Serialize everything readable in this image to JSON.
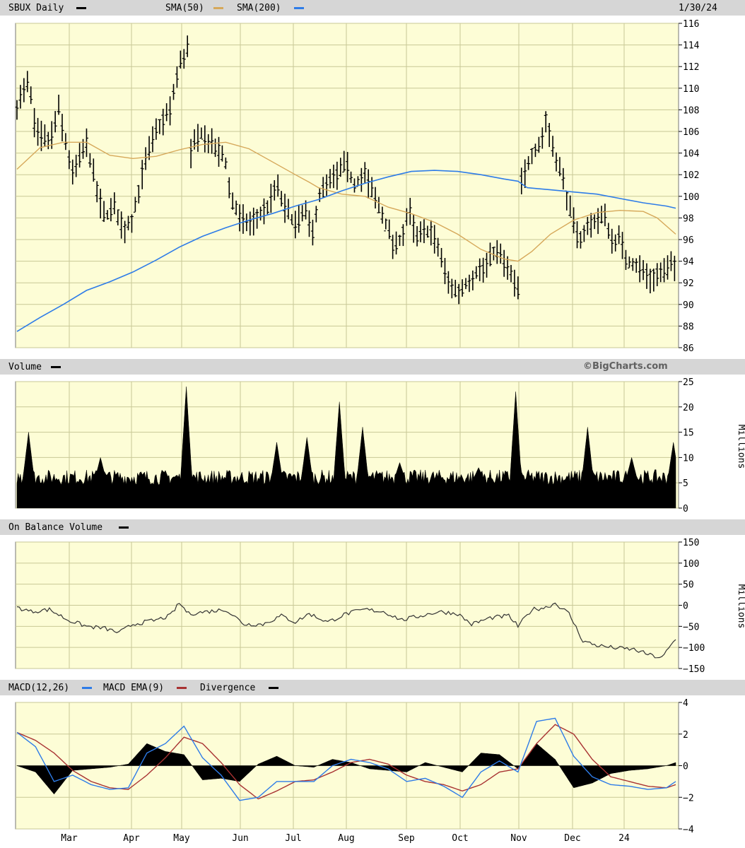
{
  "ticker_label": "SBUX Daily",
  "date_label": "1/30/24",
  "credit": "©BigCharts.com",
  "colors": {
    "panel_bg": "#fdfdd6",
    "grid": "#c8c896",
    "sma50": "#d6a85a",
    "sma200": "#2e7ce8",
    "macd": "#2e7ce8",
    "macd_ema": "#a83232",
    "price": "#000000",
    "obv": "#333333"
  },
  "legend": {
    "sma50": "SMA(50)",
    "sma200": "SMA(200)",
    "volume": "Volume",
    "obv": "On Balance Volume",
    "macd": "MACD(12,26)",
    "macd_ema": "MACD EMA(9)",
    "divergence": "Divergence"
  },
  "chart_data": [
    {
      "type": "ohlc",
      "title": "SBUX Daily",
      "ylim": [
        86,
        116
      ],
      "yticks": [
        86,
        88,
        90,
        92,
        94,
        96,
        98,
        100,
        102,
        104,
        106,
        108,
        110,
        112,
        114,
        116
      ],
      "xticks": [
        "Mar",
        "Apr",
        "May",
        "Jun",
        "Jul",
        "Aug",
        "Sep",
        "Oct",
        "Nov",
        "Dec",
        "24"
      ],
      "price_keypoints": [
        [
          0,
          108.5
        ],
        [
          5,
          110.5
        ],
        [
          8,
          106
        ],
        [
          14,
          105
        ],
        [
          18,
          108
        ],
        [
          24,
          102
        ],
        [
          30,
          105
        ],
        [
          35,
          100
        ],
        [
          38,
          98
        ],
        [
          42,
          99
        ],
        [
          46,
          97
        ],
        [
          50,
          98
        ],
        [
          55,
          103
        ],
        [
          60,
          106
        ],
        [
          66,
          108
        ],
        [
          70,
          112
        ],
        [
          74,
          114
        ],
        [
          75,
          104
        ],
        [
          79,
          106
        ],
        [
          83,
          105
        ],
        [
          88,
          104
        ],
        [
          90,
          103
        ],
        [
          92,
          100
        ],
        [
          96,
          98
        ],
        [
          100,
          97.5
        ],
        [
          104,
          98
        ],
        [
          108,
          99
        ],
        [
          112,
          101
        ],
        [
          115,
          99
        ],
        [
          120,
          97.5
        ],
        [
          125,
          98.5
        ],
        [
          127,
          96
        ],
        [
          130,
          100
        ],
        [
          134,
          101
        ],
        [
          138,
          102
        ],
        [
          142,
          103
        ],
        [
          145,
          101
        ],
        [
          150,
          102
        ],
        [
          154,
          100
        ],
        [
          158,
          98
        ],
        [
          163,
          95
        ],
        [
          167,
          97
        ],
        [
          169,
          99
        ],
        [
          172,
          96
        ],
        [
          178,
          97
        ],
        [
          182,
          95
        ],
        [
          186,
          92
        ],
        [
          190,
          91
        ],
        [
          194,
          92
        ],
        [
          198,
          93
        ],
        [
          202,
          93.5
        ],
        [
          206,
          95
        ],
        [
          210,
          94
        ],
        [
          214,
          92
        ],
        [
          216,
          91.5
        ],
        [
          217,
          101
        ],
        [
          222,
          104
        ],
        [
          226,
          105
        ],
        [
          228,
          107
        ],
        [
          232,
          104
        ],
        [
          236,
          101
        ],
        [
          238,
          99
        ],
        [
          242,
          96
        ],
        [
          246,
          97
        ],
        [
          250,
          98
        ],
        [
          254,
          98
        ],
        [
          256,
          96
        ],
        [
          260,
          96
        ],
        [
          263,
          94
        ],
        [
          268,
          93.5
        ],
        [
          273,
          92.5
        ],
        [
          278,
          93
        ],
        [
          282,
          93.5
        ],
        [
          284,
          93.5
        ]
      ],
      "sma50": [
        [
          0,
          102.5
        ],
        [
          10,
          104.5
        ],
        [
          20,
          105
        ],
        [
          30,
          105
        ],
        [
          40,
          103.8
        ],
        [
          50,
          103.5
        ],
        [
          60,
          103.7
        ],
        [
          70,
          104.3
        ],
        [
          80,
          104.8
        ],
        [
          90,
          105
        ],
        [
          100,
          104.4
        ],
        [
          110,
          103.2
        ],
        [
          120,
          102
        ],
        [
          126,
          101.3
        ],
        [
          130,
          100.8
        ],
        [
          140,
          100.2
        ],
        [
          150,
          100
        ],
        [
          160,
          99
        ],
        [
          170,
          98.4
        ],
        [
          180,
          97.6
        ],
        [
          190,
          96.5
        ],
        [
          200,
          95.1
        ],
        [
          210,
          94.2
        ],
        [
          216,
          94
        ],
        [
          222,
          94.9
        ],
        [
          230,
          96.5
        ],
        [
          240,
          97.8
        ],
        [
          250,
          98.5
        ],
        [
          260,
          98.7
        ],
        [
          270,
          98.6
        ],
        [
          276,
          98
        ],
        [
          284,
          96.5
        ]
      ],
      "sma200": [
        [
          0,
          87.5
        ],
        [
          10,
          88.8
        ],
        [
          20,
          90
        ],
        [
          30,
          91.3
        ],
        [
          40,
          92.1
        ],
        [
          50,
          93
        ],
        [
          60,
          94.1
        ],
        [
          70,
          95.3
        ],
        [
          80,
          96.3
        ],
        [
          90,
          97.1
        ],
        [
          100,
          97.8
        ],
        [
          110,
          98.4
        ],
        [
          120,
          99.1
        ],
        [
          130,
          99.7
        ],
        [
          140,
          100.5
        ],
        [
          150,
          101.2
        ],
        [
          160,
          101.8
        ],
        [
          170,
          102.3
        ],
        [
          180,
          102.4
        ],
        [
          190,
          102.3
        ],
        [
          200,
          102
        ],
        [
          210,
          101.6
        ],
        [
          216,
          101.4
        ],
        [
          220,
          100.8
        ],
        [
          230,
          100.6
        ],
        [
          240,
          100.4
        ],
        [
          250,
          100.2
        ],
        [
          260,
          99.8
        ],
        [
          270,
          99.4
        ],
        [
          280,
          99.1
        ],
        [
          284,
          98.9
        ]
      ]
    },
    {
      "type": "area",
      "title": "Volume",
      "ylabel": "Millions",
      "ylim": [
        0,
        25
      ],
      "yticks": [
        0,
        5,
        10,
        15,
        20,
        25
      ],
      "baseline": 5.5,
      "spikes": [
        [
          5,
          15
        ],
        [
          36,
          10
        ],
        [
          73,
          24
        ],
        [
          112,
          13
        ],
        [
          125,
          14
        ],
        [
          139,
          21
        ],
        [
          149,
          16
        ],
        [
          165,
          9
        ],
        [
          199,
          8
        ],
        [
          215,
          23
        ],
        [
          246,
          16
        ],
        [
          265,
          10
        ],
        [
          283,
          13
        ]
      ]
    },
    {
      "type": "line",
      "title": "On Balance Volume",
      "ylabel": "Millions",
      "ylim": [
        -150,
        150
      ],
      "yticks": [
        -150,
        -100,
        -50,
        0,
        50,
        100,
        150
      ],
      "values": [
        [
          0,
          -5
        ],
        [
          6,
          -15
        ],
        [
          14,
          -10
        ],
        [
          22,
          -35
        ],
        [
          30,
          -50
        ],
        [
          38,
          -55
        ],
        [
          44,
          -65
        ],
        [
          50,
          -45
        ],
        [
          60,
          -35
        ],
        [
          66,
          -25
        ],
        [
          70,
          5
        ],
        [
          74,
          -20
        ],
        [
          82,
          -15
        ],
        [
          90,
          -10
        ],
        [
          98,
          -45
        ],
        [
          106,
          -45
        ],
        [
          114,
          -25
        ],
        [
          120,
          -40
        ],
        [
          126,
          -20
        ],
        [
          134,
          -40
        ],
        [
          142,
          -20
        ],
        [
          150,
          -10
        ],
        [
          158,
          -15
        ],
        [
          166,
          -35
        ],
        [
          174,
          -25
        ],
        [
          182,
          -15
        ],
        [
          190,
          -20
        ],
        [
          196,
          -45
        ],
        [
          204,
          -30
        ],
        [
          212,
          -25
        ],
        [
          216,
          -50
        ],
        [
          222,
          -10
        ],
        [
          228,
          -5
        ],
        [
          232,
          5
        ],
        [
          238,
          -20
        ],
        [
          244,
          -85
        ],
        [
          250,
          -95
        ],
        [
          256,
          -100
        ],
        [
          266,
          -105
        ],
        [
          274,
          -120
        ],
        [
          278,
          -125
        ],
        [
          284,
          -80
        ]
      ]
    },
    {
      "type": "line",
      "title": "MACD(12,26)",
      "ylim": [
        -4,
        4
      ],
      "yticks": [
        -4,
        -2,
        0,
        2,
        4
      ],
      "macd": [
        [
          0,
          2.1
        ],
        [
          8,
          1.2
        ],
        [
          16,
          -1
        ],
        [
          24,
          -0.6
        ],
        [
          32,
          -1.2
        ],
        [
          40,
          -1.5
        ],
        [
          48,
          -1.4
        ],
        [
          56,
          0.8
        ],
        [
          64,
          1.4
        ],
        [
          72,
          2.5
        ],
        [
          80,
          0.5
        ],
        [
          88,
          -0.6
        ],
        [
          96,
          -2.2
        ],
        [
          104,
          -2
        ],
        [
          112,
          -1
        ],
        [
          120,
          -1
        ],
        [
          128,
          -1
        ],
        [
          136,
          0
        ],
        [
          144,
          0.4
        ],
        [
          152,
          0.2
        ],
        [
          160,
          -0.2
        ],
        [
          168,
          -1
        ],
        [
          176,
          -0.8
        ],
        [
          184,
          -1.3
        ],
        [
          192,
          -2
        ],
        [
          200,
          -0.4
        ],
        [
          208,
          0.3
        ],
        [
          216,
          -0.4
        ],
        [
          224,
          2.8
        ],
        [
          232,
          3
        ],
        [
          240,
          0.6
        ],
        [
          248,
          -0.7
        ],
        [
          256,
          -1.2
        ],
        [
          264,
          -1.3
        ],
        [
          272,
          -1.5
        ],
        [
          280,
          -1.4
        ],
        [
          284,
          -1
        ]
      ],
      "macd_ema": [
        [
          0,
          2.1
        ],
        [
          8,
          1.6
        ],
        [
          16,
          0.8
        ],
        [
          24,
          -0.3
        ],
        [
          32,
          -1
        ],
        [
          40,
          -1.4
        ],
        [
          48,
          -1.5
        ],
        [
          56,
          -0.6
        ],
        [
          64,
          0.5
        ],
        [
          72,
          1.8
        ],
        [
          80,
          1.4
        ],
        [
          88,
          0.2
        ],
        [
          96,
          -1.2
        ],
        [
          104,
          -2.1
        ],
        [
          112,
          -1.6
        ],
        [
          120,
          -1
        ],
        [
          128,
          -0.9
        ],
        [
          136,
          -0.4
        ],
        [
          144,
          0.2
        ],
        [
          152,
          0.4
        ],
        [
          160,
          0.1
        ],
        [
          168,
          -0.6
        ],
        [
          176,
          -1
        ],
        [
          184,
          -1.2
        ],
        [
          192,
          -1.6
        ],
        [
          200,
          -1.2
        ],
        [
          208,
          -0.4
        ],
        [
          216,
          -0.2
        ],
        [
          224,
          1.4
        ],
        [
          232,
          2.6
        ],
        [
          240,
          2
        ],
        [
          248,
          0.4
        ],
        [
          256,
          -0.7
        ],
        [
          264,
          -1
        ],
        [
          272,
          -1.3
        ],
        [
          280,
          -1.4
        ],
        [
          284,
          -1.2
        ]
      ]
    }
  ]
}
